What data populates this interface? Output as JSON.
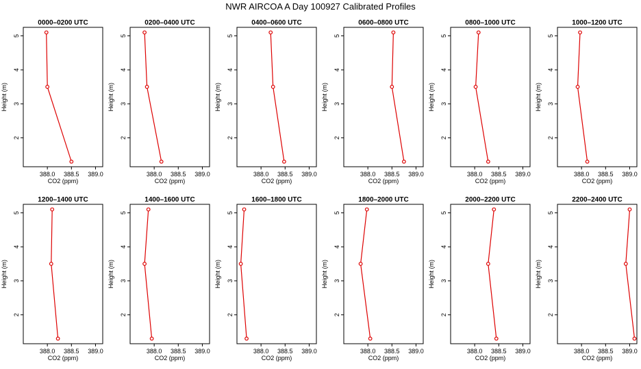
{
  "figure": {
    "title": "NWR AIRCOA A  Day 100927  Calibrated Profiles",
    "colors": {
      "series": "#dd0000",
      "axis": "#000000",
      "background": "#ffffff"
    }
  },
  "chart_data": [
    {
      "type": "line",
      "title": "0000–0200 UTC",
      "xlabel": "CO2 (ppm)",
      "ylabel": "Height (m)",
      "xlim": [
        387.5,
        389.15
      ],
      "ylim": [
        1.15,
        5.25
      ],
      "x_ticks": [
        "388.0",
        "388.5",
        "389.0"
      ],
      "y_ticks": [
        "2",
        "3",
        "4",
        "5"
      ],
      "points": [
        {
          "x": 387.98,
          "y": 5.1
        },
        {
          "x": 388.0,
          "y": 3.5
        },
        {
          "x": 388.5,
          "y": 1.3
        }
      ]
    },
    {
      "type": "line",
      "title": "0200–0400 UTC",
      "xlabel": "CO2 (ppm)",
      "ylabel": "Height (m)",
      "xlim": [
        387.5,
        389.15
      ],
      "ylim": [
        1.15,
        5.25
      ],
      "x_ticks": [
        "388.0",
        "388.5",
        "389.0"
      ],
      "y_ticks": [
        "2",
        "3",
        "4",
        "5"
      ],
      "points": [
        {
          "x": 387.8,
          "y": 5.1
        },
        {
          "x": 387.85,
          "y": 3.5
        },
        {
          "x": 388.15,
          "y": 1.3
        }
      ]
    },
    {
      "type": "line",
      "title": "0400–0600 UTC",
      "xlabel": "CO2 (ppm)",
      "ylabel": "Height (m)",
      "xlim": [
        387.5,
        389.15
      ],
      "ylim": [
        1.15,
        5.25
      ],
      "x_ticks": [
        "388.0",
        "388.5",
        "389.0"
      ],
      "y_ticks": [
        "2",
        "3",
        "4",
        "5"
      ],
      "points": [
        {
          "x": 388.2,
          "y": 5.1
        },
        {
          "x": 388.25,
          "y": 3.5
        },
        {
          "x": 388.48,
          "y": 1.3
        }
      ]
    },
    {
      "type": "line",
      "title": "0600–0800 UTC",
      "xlabel": "CO2 (ppm)",
      "ylabel": "Height (m)",
      "xlim": [
        387.5,
        389.15
      ],
      "ylim": [
        1.15,
        5.25
      ],
      "x_ticks": [
        "388.0",
        "388.5",
        "389.0"
      ],
      "y_ticks": [
        "2",
        "3",
        "4",
        "5"
      ],
      "points": [
        {
          "x": 388.53,
          "y": 5.1
        },
        {
          "x": 388.5,
          "y": 3.5
        },
        {
          "x": 388.75,
          "y": 1.3
        }
      ]
    },
    {
      "type": "line",
      "title": "0800–1000 UTC",
      "xlabel": "CO2 (ppm)",
      "ylabel": "Height (m)",
      "xlim": [
        387.5,
        389.15
      ],
      "ylim": [
        1.15,
        5.25
      ],
      "x_ticks": [
        "388.0",
        "388.5",
        "389.0"
      ],
      "y_ticks": [
        "2",
        "3",
        "4",
        "5"
      ],
      "points": [
        {
          "x": 388.08,
          "y": 5.1
        },
        {
          "x": 388.02,
          "y": 3.5
        },
        {
          "x": 388.28,
          "y": 1.3
        }
      ]
    },
    {
      "type": "line",
      "title": "1000–1200 UTC",
      "xlabel": "CO2 (ppm)",
      "ylabel": "Height (m)",
      "xlim": [
        387.5,
        389.15
      ],
      "ylim": [
        1.15,
        5.25
      ],
      "x_ticks": [
        "388.0",
        "388.5",
        "389.0"
      ],
      "y_ticks": [
        "2",
        "3",
        "4",
        "5"
      ],
      "points": [
        {
          "x": 387.97,
          "y": 5.1
        },
        {
          "x": 387.92,
          "y": 3.5
        },
        {
          "x": 388.12,
          "y": 1.3
        }
      ]
    },
    {
      "type": "line",
      "title": "1200–1400 UTC",
      "xlabel": "CO2 (ppm)",
      "ylabel": "Height (m)",
      "xlim": [
        387.5,
        389.15
      ],
      "ylim": [
        1.15,
        5.25
      ],
      "x_ticks": [
        "388.0",
        "388.5",
        "389.0"
      ],
      "y_ticks": [
        "2",
        "3",
        "4",
        "5"
      ],
      "points": [
        {
          "x": 388.1,
          "y": 5.1
        },
        {
          "x": 388.08,
          "y": 3.5
        },
        {
          "x": 388.22,
          "y": 1.3
        }
      ]
    },
    {
      "type": "line",
      "title": "1400–1600 UTC",
      "xlabel": "CO2 (ppm)",
      "ylabel": "Height (m)",
      "xlim": [
        387.5,
        389.15
      ],
      "ylim": [
        1.15,
        5.25
      ],
      "x_ticks": [
        "388.0",
        "388.5",
        "389.0"
      ],
      "y_ticks": [
        "2",
        "3",
        "4",
        "5"
      ],
      "points": [
        {
          "x": 387.88,
          "y": 5.1
        },
        {
          "x": 387.8,
          "y": 3.5
        },
        {
          "x": 387.95,
          "y": 1.3
        }
      ]
    },
    {
      "type": "line",
      "title": "1600–1800 UTC",
      "xlabel": "CO2 (ppm)",
      "ylabel": "Height (m)",
      "xlim": [
        387.5,
        389.15
      ],
      "ylim": [
        1.15,
        5.25
      ],
      "x_ticks": [
        "388.0",
        "388.5",
        "389.0"
      ],
      "y_ticks": [
        "2",
        "3",
        "4",
        "5"
      ],
      "points": [
        {
          "x": 387.65,
          "y": 5.1
        },
        {
          "x": 387.58,
          "y": 3.5
        },
        {
          "x": 387.7,
          "y": 1.3
        }
      ]
    },
    {
      "type": "line",
      "title": "1800–2000 UTC",
      "xlabel": "CO2 (ppm)",
      "ylabel": "Height (m)",
      "xlim": [
        387.5,
        389.15
      ],
      "ylim": [
        1.15,
        5.25
      ],
      "x_ticks": [
        "388.0",
        "388.5",
        "389.0"
      ],
      "y_ticks": [
        "2",
        "3",
        "4",
        "5"
      ],
      "points": [
        {
          "x": 387.98,
          "y": 5.1
        },
        {
          "x": 387.85,
          "y": 3.5
        },
        {
          "x": 388.05,
          "y": 1.3
        }
      ]
    },
    {
      "type": "line",
      "title": "2000–2200 UTC",
      "xlabel": "CO2 (ppm)",
      "ylabel": "Height (m)",
      "xlim": [
        387.5,
        389.15
      ],
      "ylim": [
        1.15,
        5.25
      ],
      "x_ticks": [
        "388.0",
        "388.5",
        "389.0"
      ],
      "y_ticks": [
        "2",
        "3",
        "4",
        "5"
      ],
      "points": [
        {
          "x": 388.4,
          "y": 5.1
        },
        {
          "x": 388.28,
          "y": 3.5
        },
        {
          "x": 388.45,
          "y": 1.3
        }
      ]
    },
    {
      "type": "line",
      "title": "2200–2400 UTC",
      "xlabel": "CO2 (ppm)",
      "ylabel": "Height (m)",
      "xlim": [
        387.5,
        389.15
      ],
      "ylim": [
        1.15,
        5.25
      ],
      "x_ticks": [
        "388.0",
        "388.5",
        "389.0"
      ],
      "y_ticks": [
        "2",
        "3",
        "4",
        "5"
      ],
      "points": [
        {
          "x": 389.0,
          "y": 5.1
        },
        {
          "x": 388.92,
          "y": 3.5
        },
        {
          "x": 389.1,
          "y": 1.3
        }
      ]
    }
  ]
}
